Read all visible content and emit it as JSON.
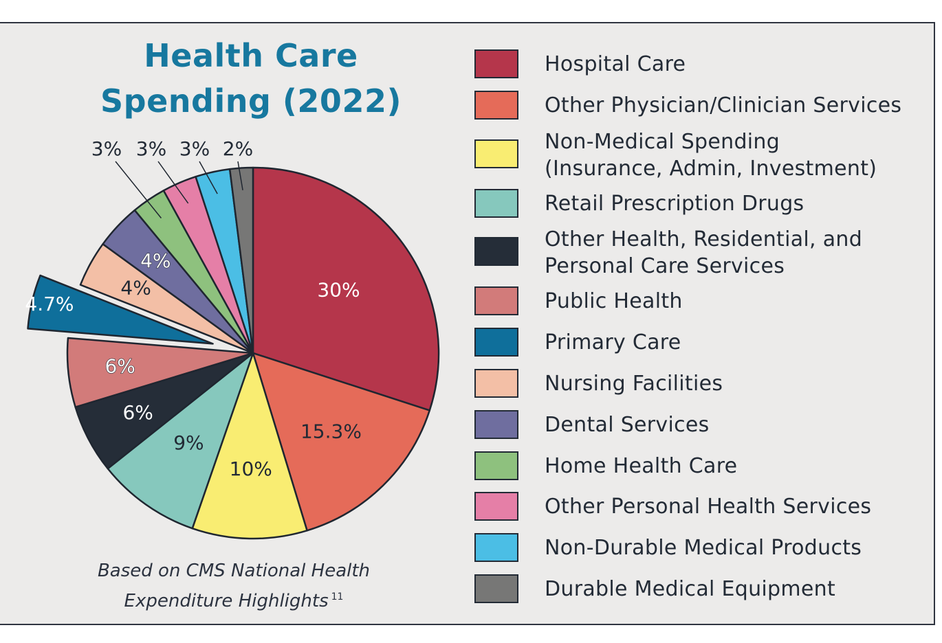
{
  "chart_data": {
    "type": "pie",
    "title_lines": [
      "Health Care",
      "Spending (2022)"
    ],
    "slices": [
      {
        "name": "Hospital Care",
        "value": 30,
        "label": "30%",
        "color": "#b5364b",
        "label_color": "#ffffff"
      },
      {
        "name": "Other Physician/Clinician Services",
        "value": 15.3,
        "label": "15.3%",
        "color": "#e56b59",
        "label_color": "#222a35"
      },
      {
        "name": "Non-Medical Spending (Insurance, Admin, Investment)",
        "value": 10,
        "label": "10%",
        "color": "#f9ed72",
        "label_color": "#222a35"
      },
      {
        "name": "Retail Prescription Drugs",
        "value": 9,
        "label": "9%",
        "color": "#86c8bd",
        "label_color": "#222a35"
      },
      {
        "name": "Other Health, Residential, and Personal Care Services",
        "value": 6,
        "label": "6%",
        "color": "#252d38",
        "label_color": "#ffffff"
      },
      {
        "name": "Public Health",
        "value": 6,
        "label": "6%",
        "color": "#d27b7a",
        "label_color": "#ffffff"
      },
      {
        "name": "Primary Care",
        "value": 4.7,
        "label": "4.7%",
        "color": "#0f6f9b",
        "label_color": "#ffffff",
        "exploded": true
      },
      {
        "name": "Nursing Facilities",
        "value": 4,
        "label": "4%",
        "color": "#f3bfa6",
        "label_color": "#222a35"
      },
      {
        "name": "Dental Services",
        "value": 4,
        "label": "4%",
        "color": "#6f6e9f",
        "label_color": "#ffffff"
      },
      {
        "name": "Home Health Care",
        "value": 3,
        "label": "3%",
        "color": "#8ec17e",
        "label_color": "#222a35"
      },
      {
        "name": "Other Personal Health Services",
        "value": 3,
        "label": "3%",
        "color": "#e57fa7",
        "label_color": "#222a35"
      },
      {
        "name": "Non-Durable Medical Products",
        "value": 3,
        "label": "3%",
        "color": "#4bbee5",
        "label_color": "#222a35"
      },
      {
        "name": "Durable Medical Equipment",
        "value": 2,
        "label": "2%",
        "color": "#777776",
        "label_color": "#222a35"
      }
    ]
  },
  "legend": [
    "Hospital Care",
    "Other Physician/Clinician Services",
    "Non-Medical Spending\n(Insurance, Admin, Investment)",
    "Retail Prescription Drugs",
    "Other Health, Residential, and\nPersonal Care Services",
    "Public Health",
    "Primary Care",
    "Nursing Facilities",
    "Dental Services",
    "Home Health Care",
    "Other Personal Health Services",
    "Non-Durable Medical Products",
    "Durable Medical Equipment"
  ],
  "source": {
    "line1": "Based on CMS National Health",
    "line2": "Expenditure Highlights",
    "ref": "11"
  }
}
